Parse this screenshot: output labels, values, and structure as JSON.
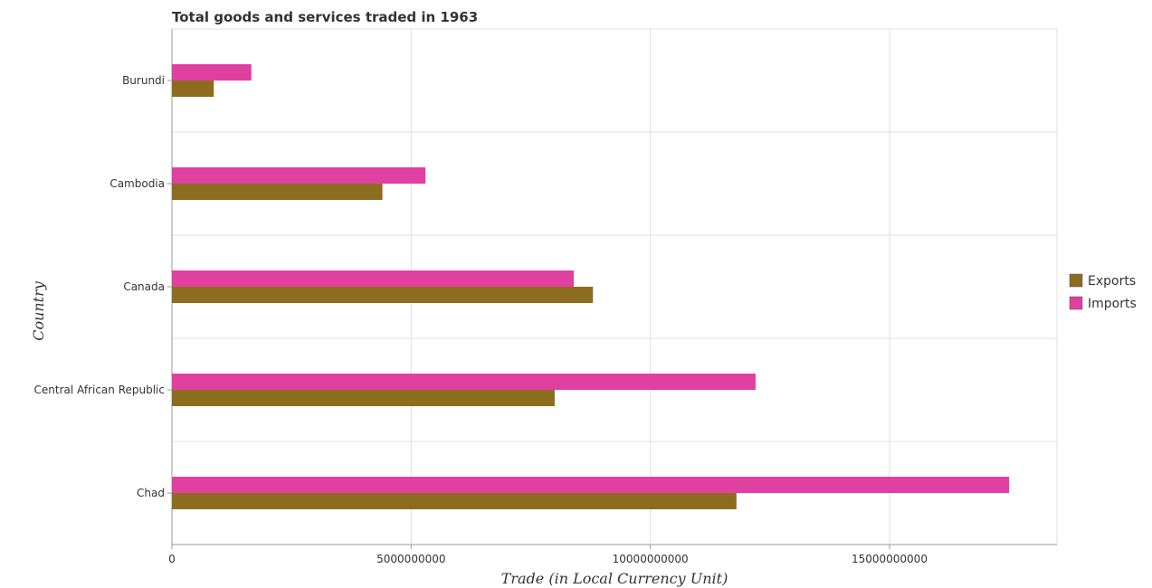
{
  "colors": {
    "exports": "#8c6d1f",
    "imports": "#e040a0",
    "grid": "#e0e0e0",
    "axis": "#999999"
  },
  "chart_data": {
    "type": "bar",
    "orientation": "horizontal",
    "title": "Total goods and services traded in 1963",
    "xlabel": "Trade (in Local Currency Unit)",
    "ylabel": "Country",
    "categories": [
      "Burundi",
      "Cambodia",
      "Canada",
      "Central African Republic",
      "Chad"
    ],
    "series": [
      {
        "name": "Exports",
        "color": "#8c6d1f",
        "values": [
          875000000,
          4400000000,
          8800000000,
          8000000000,
          11800000000
        ]
      },
      {
        "name": "Imports",
        "color": "#e040a0",
        "values": [
          1660000000,
          5300000000,
          8400000000,
          12200000000,
          17500000000
        ]
      }
    ],
    "xlim": [
      0,
      18500000000
    ],
    "xticks": [
      0,
      5000000000,
      10000000000,
      15000000000
    ],
    "xtick_labels": [
      "0",
      "5000000000",
      "10000000000",
      "15000000000"
    ],
    "grid": true,
    "legend_position": "right"
  }
}
